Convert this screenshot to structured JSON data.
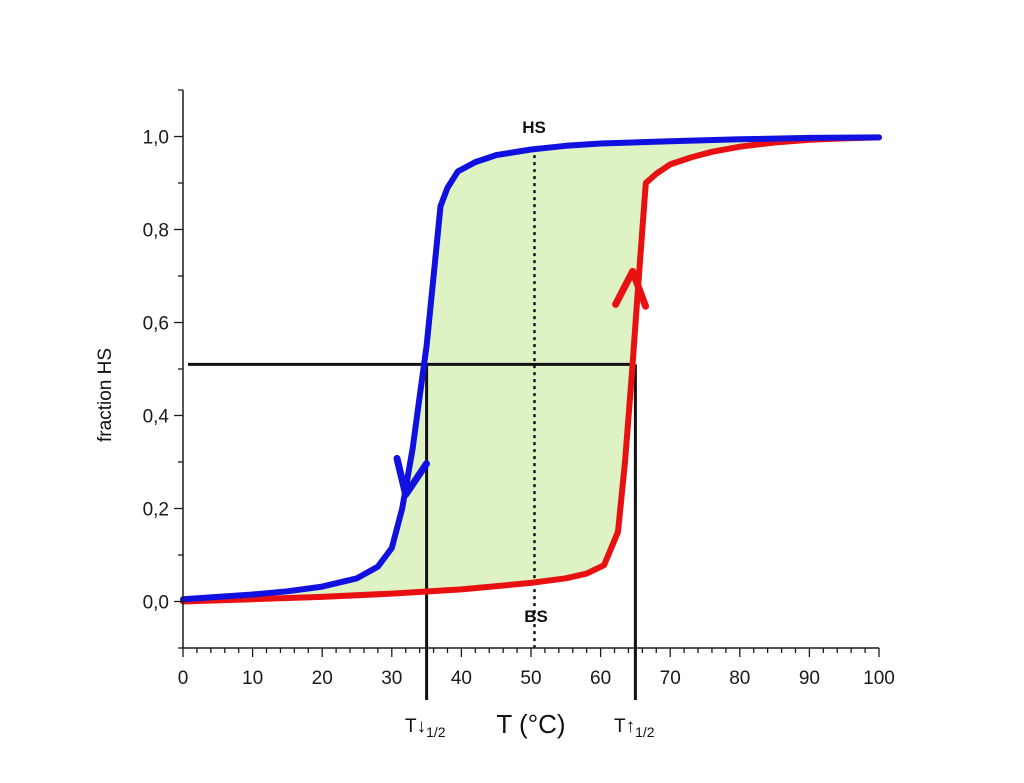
{
  "chart_data": {
    "type": "line",
    "xlabel": "T (°C)",
    "ylabel": "fraction HS",
    "xlim": [
      0,
      100
    ],
    "ylim": [
      -0.1,
      1.1
    ],
    "x_ticks": [
      0,
      10,
      20,
      30,
      40,
      50,
      60,
      70,
      80,
      90,
      100
    ],
    "x_tick_labels": [
      "0",
      "10",
      "20",
      "30",
      "40",
      "50",
      "60",
      "70",
      "80",
      "90",
      "100"
    ],
    "y_ticks": [
      0,
      0.2,
      0.4,
      0.6,
      0.8,
      1.0
    ],
    "y_tick_labels": [
      "0,0",
      "0,2",
      "0,4",
      "0,6",
      "0,8",
      "1,0"
    ],
    "grid": false,
    "series": [
      {
        "color": "#1010e0",
        "direction": "cooling",
        "x": [
          0,
          5,
          10,
          15,
          20,
          25,
          28,
          30,
          31.5,
          33,
          34,
          35,
          36,
          37,
          38,
          39.5,
          42,
          45,
          50,
          55,
          60,
          70,
          80,
          90,
          100
        ],
        "y": [
          0.005,
          0.01,
          0.015,
          0.022,
          0.032,
          0.05,
          0.075,
          0.115,
          0.2,
          0.33,
          0.44,
          0.55,
          0.7,
          0.85,
          0.89,
          0.925,
          0.945,
          0.96,
          0.972,
          0.98,
          0.985,
          0.99,
          0.994,
          0.997,
          0.998
        ]
      },
      {
        "color": "#e81010",
        "direction": "heating",
        "x": [
          0,
          10,
          20,
          30,
          40,
          50,
          55,
          58,
          60.5,
          62.5,
          63.5,
          64.5,
          65.5,
          66.5,
          68,
          70,
          73,
          76,
          80,
          85,
          90,
          95,
          100
        ],
        "y": [
          0,
          0.005,
          0.01,
          0.017,
          0.026,
          0.04,
          0.05,
          0.06,
          0.078,
          0.15,
          0.3,
          0.49,
          0.7,
          0.9,
          0.92,
          0.94,
          0.955,
          0.967,
          0.978,
          0.987,
          0.993,
          0.996,
          0.998
        ]
      }
    ],
    "annotations": {
      "hs_label": "HS",
      "bs_label": "BS",
      "midline_x": 50.5,
      "half_fraction": 0.51,
      "t_down_x": 35,
      "t_up_x": 65,
      "t_down_label": "T↓",
      "t_up_label": "T↑",
      "t_subscript": "1/2"
    },
    "colors": {
      "fill": "#dff2c4",
      "cooling": "#1010e0",
      "heating": "#e81010",
      "axis": "#1a1a1a"
    }
  }
}
